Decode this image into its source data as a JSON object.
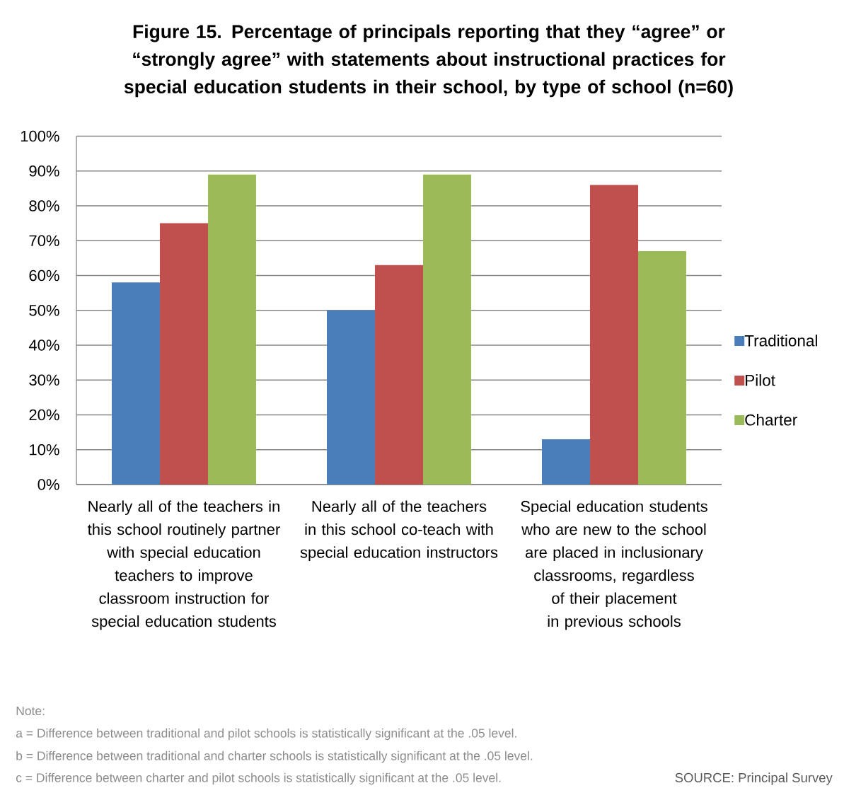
{
  "chart_data": {
    "type": "bar",
    "title": "Figure 15. Percentage of principals reporting that they “agree” or “strongly agree” with statements about instructional practices for special education students in their school, by type of school (n=60)",
    "categories": [
      "Nearly all of the teachers in this school routinely partner with special education teachers to improve classroom instruction for special education students",
      "Nearly all of the teachers in this school co-teach with special education instructors",
      "Special education students who are new to the school are placed in inclusionary classrooms, regardless of their placement in previous schools"
    ],
    "series": [
      {
        "name": "Traditional",
        "color": "#4a7ebb",
        "values": [
          58,
          50,
          13
        ]
      },
      {
        "name": "Pilot",
        "color": "#c0504d",
        "values": [
          75,
          63,
          86
        ]
      },
      {
        "name": "Charter",
        "color": "#9bbb59",
        "values": [
          89,
          89,
          67
        ]
      }
    ],
    "ylim": [
      0,
      100
    ],
    "yticks": [
      {
        "value": 0,
        "label": "0%"
      },
      {
        "value": 10,
        "label": "10%"
      },
      {
        "value": 20,
        "label": "20%"
      },
      {
        "value": 30,
        "label": "30%"
      },
      {
        "value": 40,
        "label": "40%"
      },
      {
        "value": 50,
        "label": "50%"
      },
      {
        "value": 60,
        "label": "60%"
      },
      {
        "value": 70,
        "label": "70%"
      },
      {
        "value": 80,
        "label": "80%"
      },
      {
        "value": 90,
        "label": "90%"
      },
      {
        "value": 100,
        "label": "100%"
      }
    ],
    "grid": "y",
    "legend": "right",
    "annotations": [
      "Note:",
      "a = Difference between traditional and pilot schools is statistically significant at the .05 level.",
      "b = Difference between traditional and charter schools is statistically significant at the .05 level.",
      "c = Difference between charter and pilot schools is statistically significant at the .05 level.",
      "SOURCE: Principal Survey"
    ]
  }
}
